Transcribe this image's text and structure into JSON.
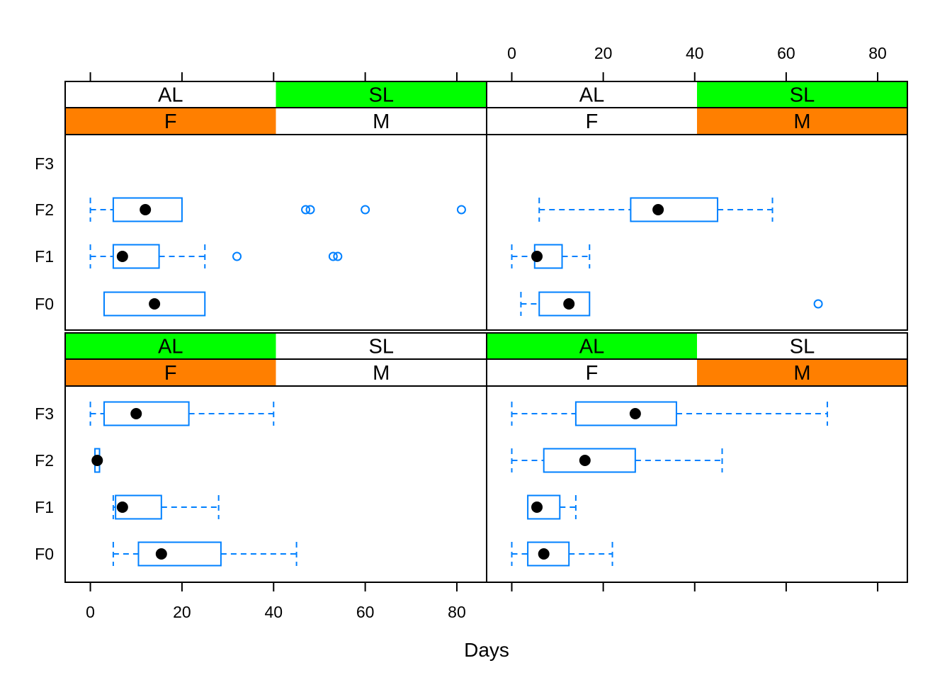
{
  "chart_data": {
    "type": "box",
    "xlabel": "Days",
    "ylabel": "",
    "xlim": [
      -5.5,
      86.5
    ],
    "x_ticks": [
      0,
      20,
      40,
      60,
      80
    ],
    "categories": [
      "F0",
      "F1",
      "F2",
      "F3"
    ],
    "colors": {
      "box": "#0080ff",
      "median_dot": "#000000",
      "strip_active": "#ff7f00",
      "strip_active_top": "#00ff00",
      "strip_default": "#ffffff",
      "frame": "#000000"
    },
    "panels": [
      {
        "id": "bottom-left",
        "strip_top": {
          "levels": [
            "AL",
            "SL"
          ],
          "active": "AL",
          "active_color": "#00ff00"
        },
        "strip_bottom": {
          "levels": [
            "F",
            "M"
          ],
          "active": "F",
          "active_color": "#ff7f00"
        },
        "boxes": [
          {
            "category": "F0",
            "min": 5,
            "q1": 10.5,
            "median": 15.5,
            "q3": 28.5,
            "max": 45,
            "outliers": []
          },
          {
            "category": "F1",
            "min": 5,
            "q1": 5.5,
            "median": 7,
            "q3": 15.5,
            "max": 28,
            "outliers": []
          },
          {
            "category": "F2",
            "min": 1,
            "q1": 1,
            "median": 1.5,
            "q3": 2,
            "max": 2,
            "outliers": []
          },
          {
            "category": "F3",
            "min": 0,
            "q1": 3,
            "median": 10,
            "q3": 21.5,
            "max": 40,
            "outliers": []
          }
        ]
      },
      {
        "id": "bottom-right",
        "strip_top": {
          "levels": [
            "AL",
            "SL"
          ],
          "active": "AL",
          "active_color": "#00ff00"
        },
        "strip_bottom": {
          "levels": [
            "F",
            "M"
          ],
          "active": "M",
          "active_color": "#ff7f00"
        },
        "boxes": [
          {
            "category": "F0",
            "min": 0,
            "q1": 3.5,
            "median": 7,
            "q3": 12.5,
            "max": 22,
            "outliers": []
          },
          {
            "category": "F1",
            "min": 3.5,
            "q1": 3.5,
            "median": 5.5,
            "q3": 10.5,
            "max": 14,
            "outliers": []
          },
          {
            "category": "F2",
            "min": 0,
            "q1": 7,
            "median": 16,
            "q3": 27,
            "max": 46,
            "outliers": []
          },
          {
            "category": "F3",
            "min": 0,
            "q1": 14,
            "median": 27,
            "q3": 36,
            "max": 69,
            "outliers": []
          }
        ]
      },
      {
        "id": "top-left",
        "strip_top": {
          "levels": [
            "AL",
            "SL"
          ],
          "active": "SL",
          "active_color": "#00ff00"
        },
        "strip_bottom": {
          "levels": [
            "F",
            "M"
          ],
          "active": "F",
          "active_color": "#ff7f00"
        },
        "boxes": [
          {
            "category": "F0",
            "min": 3,
            "q1": 3,
            "median": 14,
            "q3": 25,
            "max": 25,
            "outliers": []
          },
          {
            "category": "F1",
            "min": 0,
            "q1": 5,
            "median": 7,
            "q3": 15,
            "max": 25,
            "outliers": [
              32,
              53,
              54
            ]
          },
          {
            "category": "F2",
            "min": 0,
            "q1": 5,
            "median": 12,
            "q3": 20,
            "max": 20,
            "outliers": [
              47,
              48,
              60,
              81
            ]
          }
        ]
      },
      {
        "id": "top-right",
        "strip_top": {
          "levels": [
            "AL",
            "SL"
          ],
          "active": "SL",
          "active_color": "#00ff00"
        },
        "strip_bottom": {
          "levels": [
            "F",
            "M"
          ],
          "active": "M",
          "active_color": "#ff7f00"
        },
        "boxes": [
          {
            "category": "F0",
            "min": 2,
            "q1": 6,
            "median": 12.5,
            "q3": 17,
            "max": 17,
            "outliers": [
              67
            ]
          },
          {
            "category": "F1",
            "min": 0,
            "q1": 5,
            "median": 5.5,
            "q3": 11,
            "max": 17,
            "outliers": []
          },
          {
            "category": "F2",
            "min": 6,
            "q1": 26,
            "median": 32,
            "q3": 45,
            "max": 57,
            "outliers": []
          }
        ]
      }
    ]
  }
}
